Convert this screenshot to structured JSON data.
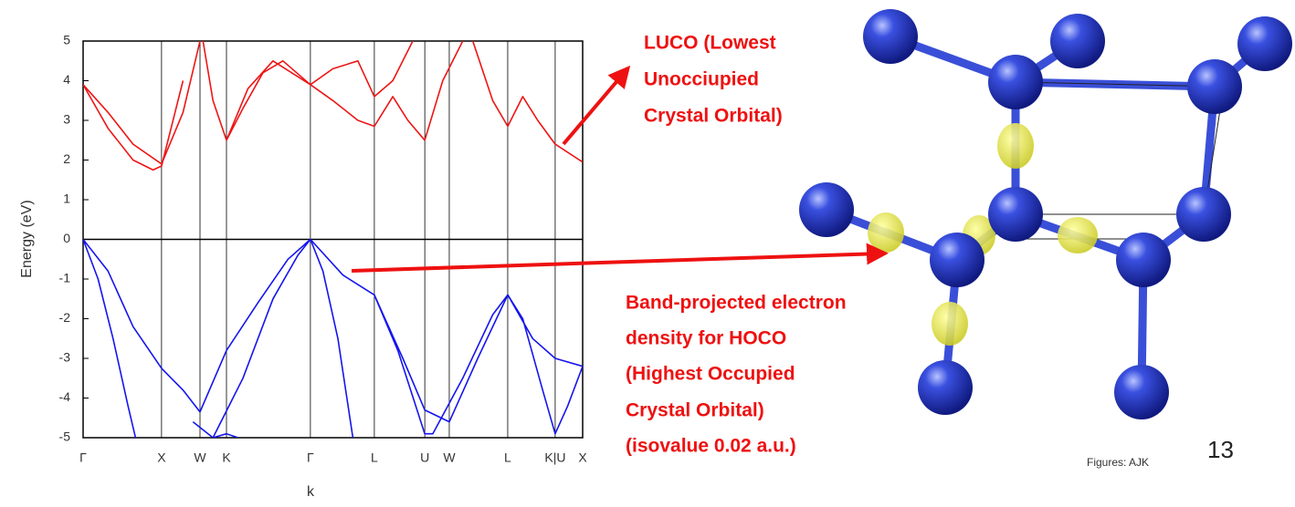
{
  "chart_data": {
    "type": "line",
    "xlabel": "k",
    "ylabel": "Energy (eV)",
    "xlim": [
      0,
      1
    ],
    "ylim": [
      -5,
      5
    ],
    "xticks": [
      {
        "value": 0,
        "label": "Γ"
      },
      {
        "value": 0.157,
        "label": "X"
      },
      {
        "value": 0.234,
        "label": "W"
      },
      {
        "value": 0.287,
        "label": "K"
      },
      {
        "value": 0.455,
        "label": "Γ"
      },
      {
        "value": 0.583,
        "label": "L"
      },
      {
        "value": 0.684,
        "label": "U"
      },
      {
        "value": 0.733,
        "label": "W"
      },
      {
        "value": 0.85,
        "label": "L"
      },
      {
        "value": 0.945,
        "label": "K|U"
      },
      {
        "value": 1,
        "label": "X"
      }
    ],
    "yticks": [
      -5,
      -4,
      -3,
      -2,
      -1,
      0,
      1,
      2,
      3,
      4,
      5
    ],
    "series": [
      {
        "color": "#1515ee",
        "x": [
          0,
          0.05,
          0.1,
          0.157,
          0.2,
          0.234,
          0.287,
          0.35,
          0.41,
          0.455,
          0.52,
          0.583,
          0.64,
          0.684,
          0.733,
          0.79,
          0.85,
          0.9,
          0.945,
          1
        ],
        "values": [
          0,
          -0.8,
          -2.2,
          -3.25,
          -3.8,
          -4.35,
          -2.8,
          -1.6,
          -0.5,
          0,
          -0.9,
          -1.4,
          -3,
          -4.3,
          -4.6,
          -3,
          -1.4,
          -2.5,
          -3,
          -3.2
        ]
      },
      {
        "color": "#1515ee",
        "x": [
          0,
          0.03,
          0.06,
          0.09,
          0.105
        ],
        "values": [
          0,
          -1,
          -2.5,
          -4.2,
          -5
        ]
      },
      {
        "color": "#1515ee",
        "x": [
          0.26,
          0.32,
          0.38,
          0.43,
          0.455,
          0.48,
          0.51,
          0.54
        ],
        "values": [
          -5,
          -3.5,
          -1.5,
          -0.4,
          0,
          -0.8,
          -2.5,
          -5
        ]
      },
      {
        "color": "#1515ee",
        "x": [
          0.22,
          0.26,
          0.287,
          0.31
        ],
        "values": [
          -4.6,
          -5,
          -4.9,
          -5
        ]
      },
      {
        "color": "#1515ee",
        "x": [
          0.583,
          0.63,
          0.684,
          0.7,
          0.76,
          0.82,
          0.85,
          0.88,
          0.92,
          0.945,
          0.97,
          1
        ],
        "values": [
          -1.4,
          -2.8,
          -4.9,
          -4.9,
          -3.5,
          -1.9,
          -1.4,
          -2,
          -3.8,
          -4.9,
          -4.2,
          -3.2
        ]
      },
      {
        "color": "#ee1515",
        "x": [
          0,
          0.05,
          0.1,
          0.157,
          0.2,
          0.234
        ],
        "values": [
          3.9,
          3.2,
          2.4,
          1.9,
          3.2,
          5
        ]
      },
      {
        "color": "#ee1515",
        "x": [
          0,
          0.05,
          0.1,
          0.14,
          0.157,
          0.2
        ],
        "values": [
          3.9,
          2.8,
          2,
          1.75,
          1.85,
          4
        ]
      },
      {
        "color": "#ee1515",
        "x": [
          0.24,
          0.26,
          0.287,
          0.32,
          0.36,
          0.4,
          0.455,
          0.5,
          0.55,
          0.583,
          0.62,
          0.65,
          0.684,
          0.72,
          0.76
        ],
        "values": [
          5,
          3.5,
          2.5,
          3.3,
          4.2,
          4.5,
          3.9,
          3.5,
          3,
          2.85,
          3.6,
          3,
          2.5,
          4,
          5
        ]
      },
      {
        "color": "#ee1515",
        "x": [
          0.287,
          0.33,
          0.38,
          0.455,
          0.5,
          0.55,
          0.583,
          0.62,
          0.66
        ],
        "values": [
          2.5,
          3.8,
          4.5,
          3.9,
          4.3,
          4.5,
          3.6,
          4,
          5
        ]
      },
      {
        "color": "#ee1515",
        "x": [
          0.78,
          0.82,
          0.85,
          0.88,
          0.91,
          0.945,
          1
        ],
        "values": [
          5,
          3.5,
          2.85,
          3.6,
          3,
          2.4,
          1.95
        ]
      }
    ]
  },
  "annotations": {
    "luco": [
      "LUCO (Lowest",
      "Unocciupied",
      "Crystal Orbital)"
    ],
    "hoco": [
      "Band-projected electron",
      "density for HOCO",
      "(Highest Occupied",
      "Crystal Orbital)",
      "(isovalue 0.02 a.u.)"
    ],
    "credit": "Figures: AJK",
    "page_number": "13"
  }
}
